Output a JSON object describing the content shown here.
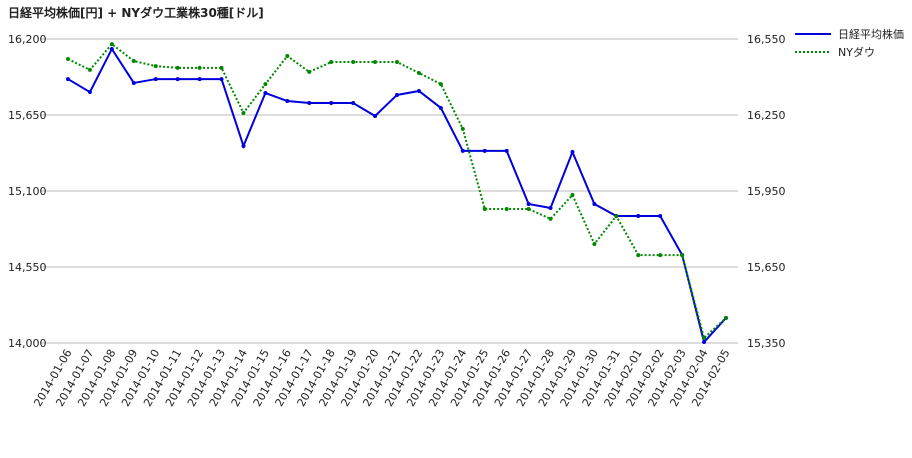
{
  "chart_data": {
    "type": "line",
    "title": "日経平均株価[円] + NYダウ工業株30種[ドル]",
    "categories": [
      "2014-01-06",
      "2014-01-07",
      "2014-01-08",
      "2014-01-09",
      "2014-01-10",
      "2014-01-11",
      "2014-01-12",
      "2014-01-13",
      "2014-01-14",
      "2014-01-15",
      "2014-01-16",
      "2014-01-17",
      "2014-01-18",
      "2014-01-19",
      "2014-01-20",
      "2014-01-21",
      "2014-01-22",
      "2014-01-23",
      "2014-01-24",
      "2014-01-25",
      "2014-01-26",
      "2014-01-27",
      "2014-01-28",
      "2014-01-29",
      "2014-01-30",
      "2014-01-31",
      "2014-02-01",
      "2014-02-02",
      "2014-02-03",
      "2014-02-04",
      "2014-02-05"
    ],
    "series": [
      {
        "name": "日経平均株価",
        "color": "#0000dd",
        "dash": "solid",
        "values": [
          15910,
          15816,
          16128,
          15882,
          15910,
          15910,
          15910,
          15910,
          15426,
          15809,
          15751,
          15737,
          15737,
          15737,
          15643,
          15795,
          15824,
          15701,
          15390,
          15390,
          15390,
          15006,
          14977,
          15382,
          15006,
          14919,
          14919,
          14919,
          14637,
          14007,
          14181
        ]
      },
      {
        "name": "NYダウ",
        "color": "#008800",
        "dash": "dotted",
        "axis": "y2",
        "values": [
          16471,
          16428,
          16530,
          16463,
          16443,
          16436,
          16436,
          16436,
          16258,
          16372,
          16483,
          16420,
          16459,
          16459,
          16459,
          16459,
          16416,
          16372,
          16195,
          15879,
          15879,
          15879,
          15840,
          15934,
          15741,
          15851,
          15697,
          15697,
          15697,
          15370,
          15449
        ]
      }
    ],
    "ylim": [
      14000,
      16200
    ],
    "yticks": [
      {
        "value": 14000,
        "label": "14,000"
      },
      {
        "value": 14550,
        "label": "14,550"
      },
      {
        "value": 15100,
        "label": "15,100"
      },
      {
        "value": 15650,
        "label": "15,650"
      },
      {
        "value": 16200,
        "label": "16,200"
      }
    ],
    "y2lim": [
      15350,
      16550
    ],
    "y2ticks": [
      {
        "value": 15350,
        "label": "15,350"
      },
      {
        "value": 15650,
        "label": "15,650"
      },
      {
        "value": 15950,
        "label": "15,950"
      },
      {
        "value": 16250,
        "label": "16,250"
      },
      {
        "value": 16550,
        "label": "16,550"
      }
    ],
    "grid": true,
    "legend": "right"
  }
}
